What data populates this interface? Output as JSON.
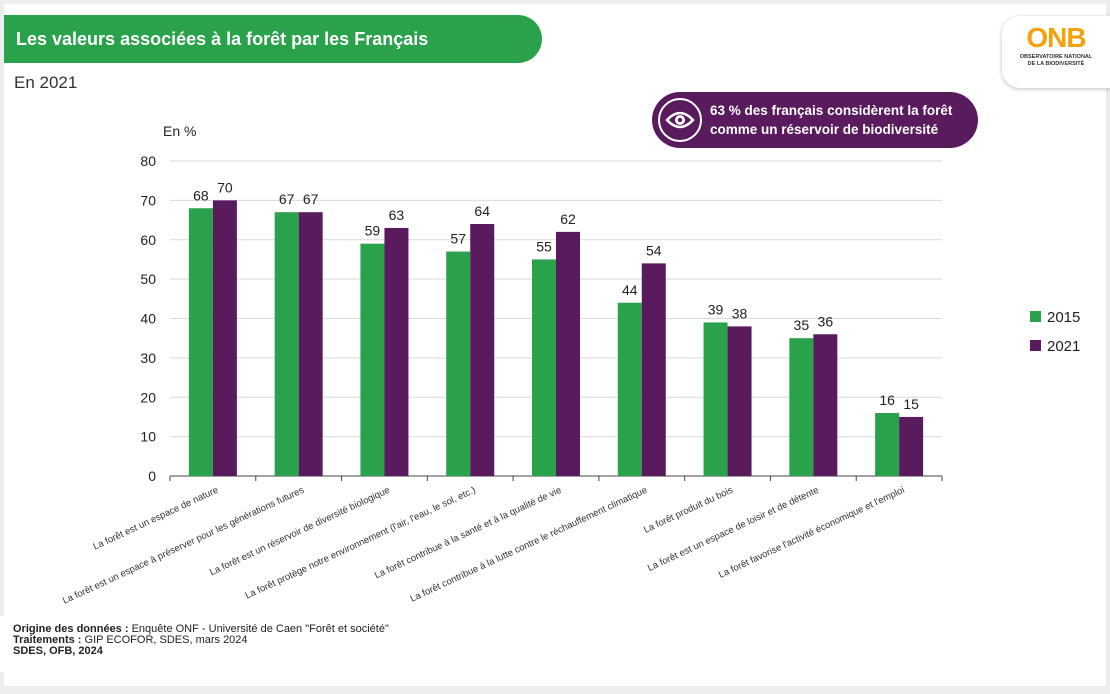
{
  "header": {
    "title": "Les valeurs associées à la forêt par les Français",
    "subtitle": "En 2021"
  },
  "logo": {
    "word": "ONB",
    "line1": "OBSERVATOIRE NATIONAL",
    "line2": "DE LA BIODIVERSITÉ"
  },
  "callout": {
    "icon": "eye-icon",
    "line1": "63 % des français considèrent la forêt",
    "line2": "comme un réservoir de biodiversité"
  },
  "source": {
    "origin_label": "Origine des données :",
    "origin_value": " Enquête ONF - Université de Caen \"Forêt et société\"",
    "treatment_label": "Traitements :",
    "treatment_value": " GIP ECOFOR, SDES, mars 2024",
    "credit": "SDES, OFB, 2024"
  },
  "colors": {
    "green": "#2aa14b",
    "purple": "#5a1a5e"
  },
  "chart_data": {
    "type": "bar",
    "ylabel": "En %",
    "ylim": [
      0,
      80
    ],
    "yticks": [
      0,
      10,
      20,
      30,
      40,
      50,
      60,
      70,
      80
    ],
    "grid": true,
    "legend_position": "right",
    "categories": [
      "La forêt est un espace de nature",
      "La forêt est un espace à préserver pour les générations futures",
      "La forêt est un réservoir de diversité biologique",
      "La forêt protège notre environnement (l'air, l'eau, le sol, etc.)",
      "La forêt contribue à la santé et à la qualité de vie",
      "La forêt contribue à la lutte contre le réchauffement climatique",
      "La forêt produit du bois",
      "La forêt est un espace de loisir et de détente",
      "La forêt favorise l'activité économique et l'emploi"
    ],
    "series": [
      {
        "name": "2015",
        "color": "#2aa14b",
        "values": [
          68,
          67,
          59,
          57,
          55,
          44,
          39,
          35,
          16
        ]
      },
      {
        "name": "2021",
        "color": "#5a1a5e",
        "values": [
          70,
          67,
          63,
          64,
          62,
          54,
          38,
          36,
          15
        ]
      }
    ]
  }
}
